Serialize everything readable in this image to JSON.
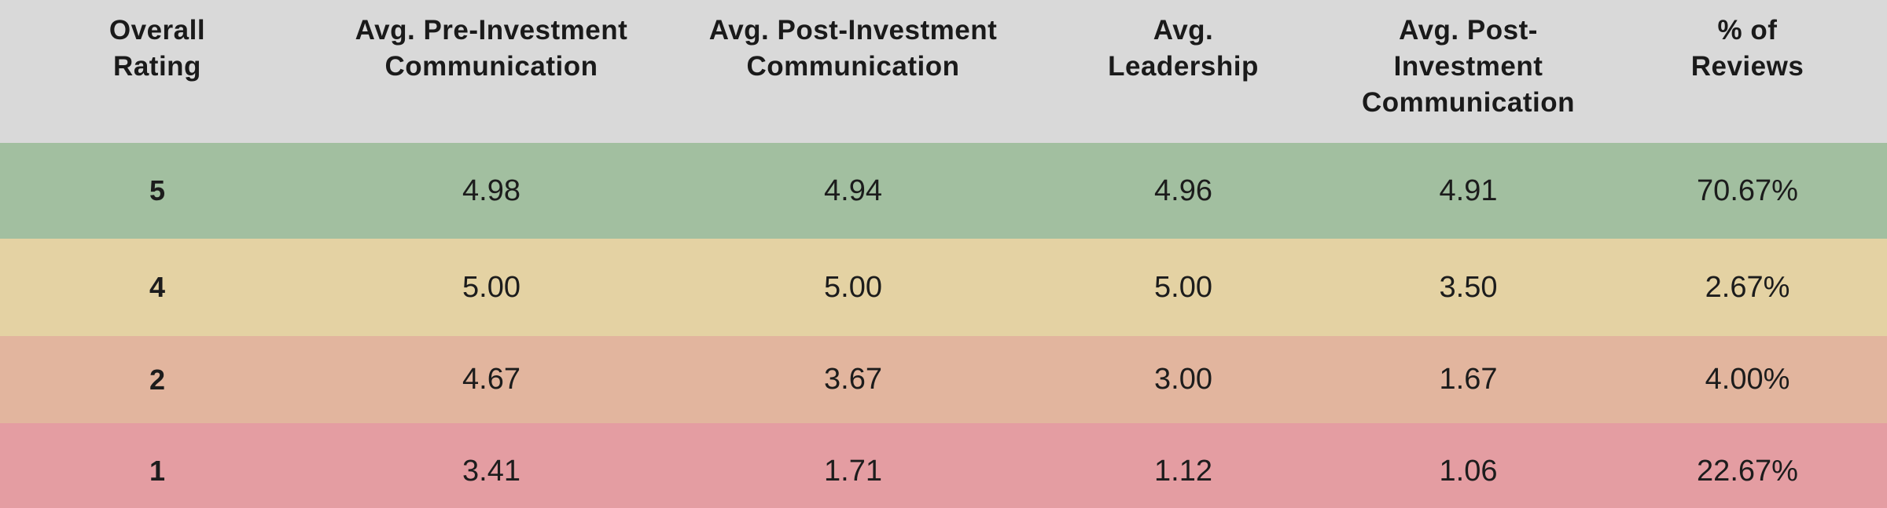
{
  "colors": {
    "header_bg": "#d9d9d9",
    "row_green": "#a2bfa0",
    "row_tan": "#e4d2a3",
    "row_salmon": "#e2b59e",
    "row_pink": "#e49da2",
    "text": "#1c1c1c"
  },
  "table": {
    "columns": [
      {
        "label": "Overall Rating",
        "line1": "Overall",
        "line2": "Rating"
      },
      {
        "label": "Avg. Pre-Investment Communication",
        "line1": "Avg. Pre-Investment",
        "line2": "Communication"
      },
      {
        "label": "Avg. Post-Investment Communication",
        "line1": "Avg. Post-Investment",
        "line2": "Communication"
      },
      {
        "label": "Avg. Leadership",
        "line1": "Avg.",
        "line2": "Leadership"
      },
      {
        "label": "Avg. Post-Investment Communication",
        "line1": "Avg. Post-Investment",
        "line2": "Communication"
      },
      {
        "label": "% of Reviews",
        "line1": "% of",
        "line2": "Reviews"
      }
    ],
    "rows": [
      {
        "row_color": "#a2bfa0",
        "cells": [
          "5",
          "4.98",
          "4.94",
          "4.96",
          "4.91",
          "70.67%"
        ]
      },
      {
        "row_color": "#e4d2a3",
        "cells": [
          "4",
          "5.00",
          "5.00",
          "5.00",
          "3.50",
          "2.67%"
        ]
      },
      {
        "row_color": "#e2b59e",
        "cells": [
          "2",
          "4.67",
          "3.67",
          "3.00",
          "1.67",
          "4.00%"
        ]
      },
      {
        "row_color": "#e49da2",
        "cells": [
          "1",
          "3.41",
          "1.71",
          "1.12",
          "1.06",
          "22.67%"
        ]
      }
    ]
  },
  "chart_data": {
    "type": "table",
    "title": "",
    "columns": [
      "Overall Rating",
      "Avg. Pre-Investment Communication",
      "Avg. Post-Investment Communication",
      "Avg. Leadership",
      "Avg. Post-Investment Communication",
      "% of Reviews"
    ],
    "rows": [
      {
        "overall_rating": 5,
        "avg_pre_investment_communication": 4.98,
        "avg_post_investment_communication": 4.94,
        "avg_leadership": 4.96,
        "avg_post_investment_communication_2": 4.91,
        "pct_of_reviews": "70.67%"
      },
      {
        "overall_rating": 4,
        "avg_pre_investment_communication": 5.0,
        "avg_post_investment_communication": 5.0,
        "avg_leadership": 5.0,
        "avg_post_investment_communication_2": 3.5,
        "pct_of_reviews": "2.67%"
      },
      {
        "overall_rating": 2,
        "avg_pre_investment_communication": 4.67,
        "avg_post_investment_communication": 3.67,
        "avg_leadership": 3.0,
        "avg_post_investment_communication_2": 1.67,
        "pct_of_reviews": "4.00%"
      },
      {
        "overall_rating": 1,
        "avg_pre_investment_communication": 3.41,
        "avg_post_investment_communication": 1.71,
        "avg_leadership": 1.12,
        "avg_post_investment_communication_2": 1.06,
        "pct_of_reviews": "22.67%"
      }
    ],
    "layout_hints": {
      "row_color_coding": "green=rating 5, tan=rating 4, salmon=rating 2, pink=rating 1",
      "header_background": "#d9d9d9"
    }
  }
}
